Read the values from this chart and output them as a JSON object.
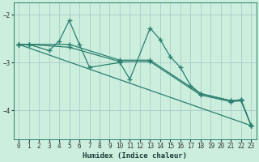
{
  "xlabel": "Humidex (Indice chaleur)",
  "background_color": "#cceedd",
  "grid_color": "#aacccc",
  "line_color": "#2a7f6f",
  "xlim": [
    -0.5,
    23.5
  ],
  "ylim": [
    -4.6,
    -1.75
  ],
  "yticks": [
    -4,
    -3,
    -2
  ],
  "xticks": [
    0,
    1,
    2,
    3,
    4,
    5,
    6,
    7,
    8,
    9,
    10,
    11,
    12,
    13,
    14,
    15,
    16,
    17,
    18,
    19,
    20,
    21,
    22,
    23
  ],
  "series": [
    {
      "x": [
        0,
        1,
        3,
        4,
        5,
        6,
        7,
        10,
        11,
        13,
        14,
        15,
        16,
        17,
        18,
        21,
        22,
        23
      ],
      "y": [
        -2.62,
        -2.62,
        -2.75,
        -2.55,
        -2.12,
        -2.62,
        -3.1,
        -3.0,
        -3.35,
        -2.28,
        -2.52,
        -2.88,
        -3.1,
        -3.48,
        -3.65,
        -3.8,
        -3.78,
        -4.32
      ]
    },
    {
      "x": [
        0,
        1,
        5,
        10,
        13,
        18,
        21,
        22,
        23
      ],
      "y": [
        -2.62,
        -2.62,
        -2.62,
        -2.95,
        -2.95,
        -3.65,
        -3.8,
        -3.78,
        -4.32
      ]
    },
    {
      "x": [
        0,
        1,
        5,
        10,
        13,
        18,
        21,
        22,
        23
      ],
      "y": [
        -2.62,
        -2.62,
        -2.68,
        -2.98,
        -2.98,
        -3.68,
        -3.82,
        -3.8,
        -4.32
      ]
    },
    {
      "x": [
        0,
        23
      ],
      "y": [
        -2.62,
        -4.32
      ]
    }
  ],
  "marker": "+",
  "markersize": 4,
  "linewidth": 0.9,
  "tick_fontsize": 5.5,
  "xlabel_fontsize": 6.5,
  "xlabel_fontweight": "bold"
}
